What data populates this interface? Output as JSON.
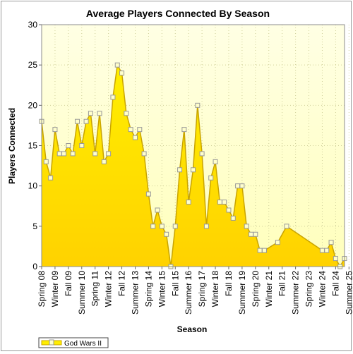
{
  "chart_data": {
    "type": "area",
    "title": "Average Players Connected By Season",
    "xlabel": "Season",
    "ylabel": "Players Connected",
    "ylim": [
      0,
      30
    ],
    "yticks": [
      0,
      5,
      10,
      15,
      20,
      25,
      30
    ],
    "grid": true,
    "legend_position": "bottom-left",
    "colors": {
      "fill_top": "#ffee00",
      "fill_bottom": "#ffd200",
      "line": "#c9a400",
      "marker_fill": "#ffffcc",
      "plot_bg_top": "#ffffe4",
      "plot_bg_bottom": "#ffffbc"
    },
    "x_tick_labels": [
      "Spring 08",
      "Winter 09",
      "Fall 09",
      "Summer 10",
      "Spring 11",
      "Winter 12",
      "Fall 12",
      "Summer 13",
      "Spring 14",
      "Winter 15",
      "Fall 15",
      "Summer 16",
      "Spring 17",
      "Winter 18",
      "Fall 18",
      "Summer 19",
      "Spring 20",
      "Winter 21",
      "Fall 21",
      "Summer 22",
      "Spring 23",
      "Winter 24",
      "Fall 24",
      "Summer 25"
    ],
    "series": [
      {
        "name": "God Wars II",
        "values": [
          18,
          13,
          11,
          17,
          14,
          14,
          15,
          14,
          18,
          15,
          18,
          19,
          14,
          19,
          13,
          14,
          21,
          25,
          24,
          19,
          17,
          16,
          17,
          14,
          9,
          5,
          7,
          5,
          4,
          0,
          5,
          12,
          17,
          8,
          12,
          20,
          14,
          5,
          11,
          13,
          8,
          8,
          7,
          6,
          10,
          10,
          5,
          4,
          4,
          2,
          2,
          null,
          null,
          3,
          null,
          5,
          null,
          null,
          null,
          null,
          null,
          null,
          null,
          2,
          2,
          3,
          1,
          0,
          1
        ],
        "markers_hidden_at": [
          51,
          52,
          54,
          56,
          57,
          58,
          59,
          60,
          61,
          62
        ]
      }
    ]
  }
}
